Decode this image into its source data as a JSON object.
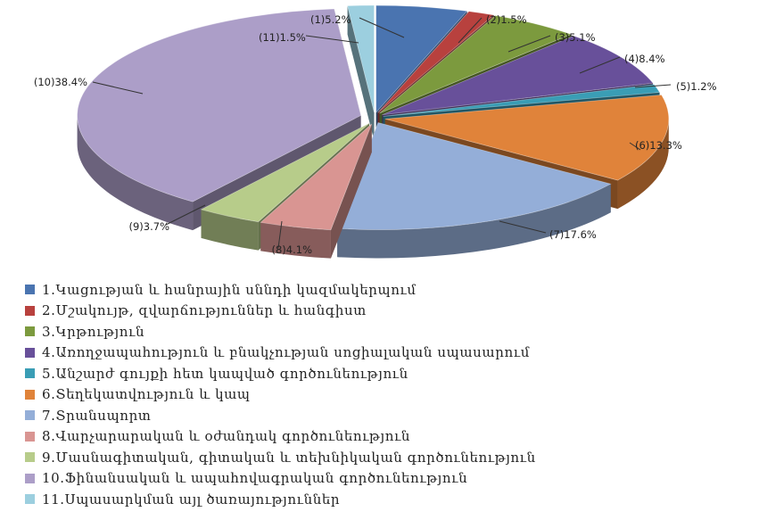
{
  "chart_data": {
    "type": "pie",
    "title": "",
    "slices": [
      {
        "label": "(1)5.2%",
        "value": 5.2,
        "legend": "1.Կացության և հանրային սննդի կազմակերպում",
        "color": "#4a74b0"
      },
      {
        "label": "(2)1.5%",
        "value": 1.5,
        "legend": "2.Մշակույթ, զվարճություններ և հանգիստ",
        "color": "#b8413e"
      },
      {
        "label": "(3)5.1%",
        "value": 5.1,
        "legend": "3.Կրթություն",
        "color": "#7c9a3e"
      },
      {
        "label": "(4)8.4%",
        "value": 8.4,
        "legend": "4.Առողջապահություն և բնակչության սոցիալական սպասարում",
        "color": "#68509a"
      },
      {
        "label": "(5)1.2%",
        "value": 1.2,
        "legend": "5.Անշարժ գույքի  հետ կապված  գործունեություն",
        "color": "#3a9db5"
      },
      {
        "label": "(6)13.3%",
        "value": 13.3,
        "legend": "6.Տեղեկատվություն և կապ",
        "color": "#e0833a"
      },
      {
        "label": "(7)17.6%",
        "value": 17.6,
        "legend": "7.Տրանսպորտ",
        "color": "#94aed8"
      },
      {
        "label": "(8)4.1%",
        "value": 4.1,
        "legend": "8.Վարչարարական և օժանդակ գործունեություն",
        "color": "#d99592"
      },
      {
        "label": "(9)3.7%",
        "value": 3.7,
        "legend": "9.Մասնագիտական, գիտական և տեխնիկական գործունեություն",
        "color": "#b7cc8a"
      },
      {
        "label": "(10)38.4%",
        "value": 38.4,
        "legend": "10.Ֆինանսական և ապահովագրական գործունեություն",
        "color": "#ac9ec8"
      },
      {
        "label": "(11)1.5%",
        "value": 1.5,
        "legend": "11.Սպասարկման այլ ծառայություններ",
        "color": "#9ccfdf"
      }
    ]
  }
}
